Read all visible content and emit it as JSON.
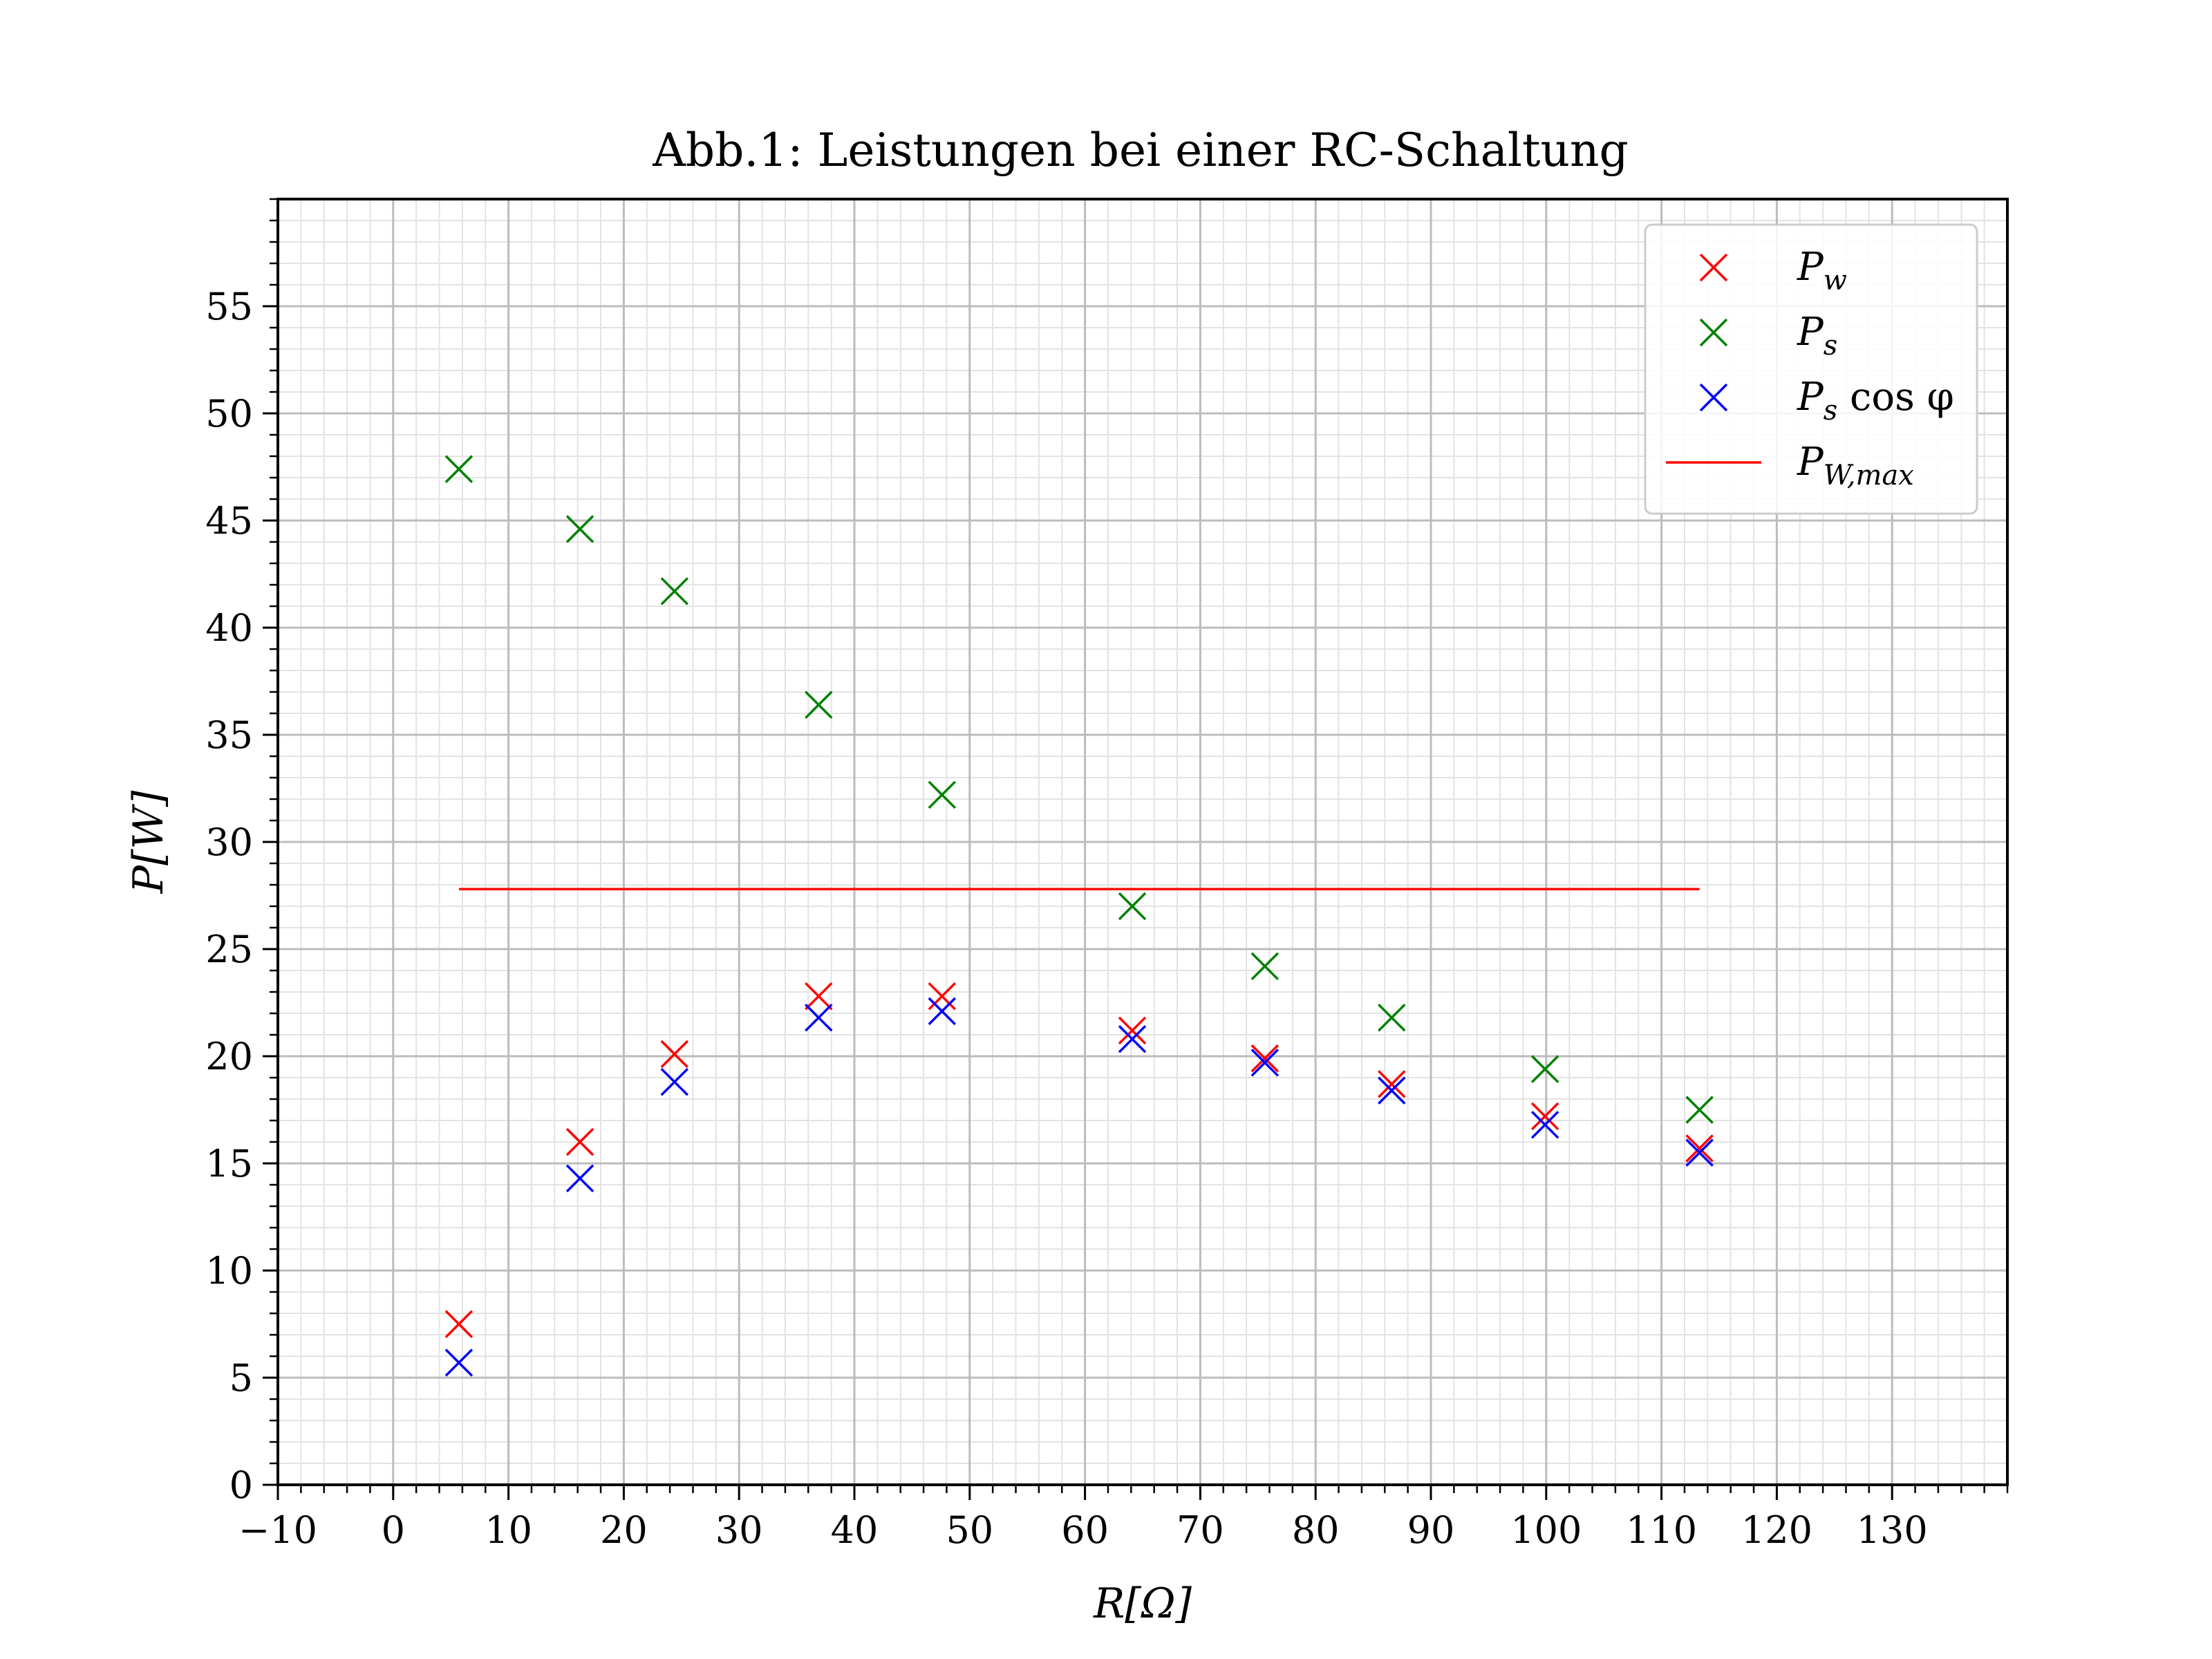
{
  "chart_data": {
    "type": "scatter",
    "title": "Abb.1: Leistungen bei einer RC-Schaltung",
    "xlabel": "R[Ω]",
    "ylabel": "P[W]",
    "xlim": [
      -10,
      140
    ],
    "ylim": [
      0,
      60
    ],
    "x_ticks": [
      "−10",
      "0",
      "10",
      "20",
      "30",
      "40",
      "50",
      "60",
      "70",
      "80",
      "90",
      "100",
      "110",
      "120",
      "130"
    ],
    "y_ticks": [
      "0",
      "5",
      "10",
      "15",
      "20",
      "25",
      "30",
      "35",
      "40",
      "45",
      "50",
      "55"
    ],
    "grid": true,
    "legend_position": "top-right",
    "series": [
      {
        "name": "Pw",
        "color": "#ff0000",
        "marker": "x",
        "x": [
          5.7,
          16.2,
          24.4,
          36.9,
          47.6,
          64.1,
          75.6,
          86.6,
          99.9,
          113.3
        ],
        "y": [
          7.5,
          16.0,
          20.1,
          22.8,
          22.8,
          21.2,
          19.9,
          18.7,
          17.2,
          15.7
        ]
      },
      {
        "name": "Ps",
        "color": "#008000",
        "marker": "x",
        "x": [
          5.7,
          16.2,
          24.4,
          36.9,
          47.6,
          64.1,
          75.6,
          86.6,
          99.9,
          113.3
        ],
        "y": [
          47.4,
          44.6,
          41.7,
          36.4,
          32.2,
          27.0,
          24.2,
          21.8,
          19.4,
          17.5
        ]
      },
      {
        "name": "Ps cos φ",
        "color": "#0000ff",
        "marker": "x",
        "x": [
          5.7,
          16.2,
          24.4,
          36.9,
          47.6,
          64.1,
          75.6,
          86.6,
          99.9,
          113.3
        ],
        "y": [
          5.7,
          14.3,
          18.8,
          21.8,
          22.1,
          20.8,
          19.7,
          18.4,
          16.8,
          15.5
        ]
      },
      {
        "name": "PW,max",
        "color": "#ff0000",
        "marker": "line",
        "x": [
          5.7,
          113.3
        ],
        "y": [
          27.8,
          27.8
        ]
      }
    ],
    "legend": [
      {
        "main": "P",
        "sub": "w",
        "suffix": ""
      },
      {
        "main": "P",
        "sub": "s",
        "suffix": ""
      },
      {
        "main": "P",
        "sub": "s",
        "suffix": " cos φ"
      },
      {
        "main": "P",
        "sub": "W,max",
        "suffix": ""
      }
    ]
  }
}
